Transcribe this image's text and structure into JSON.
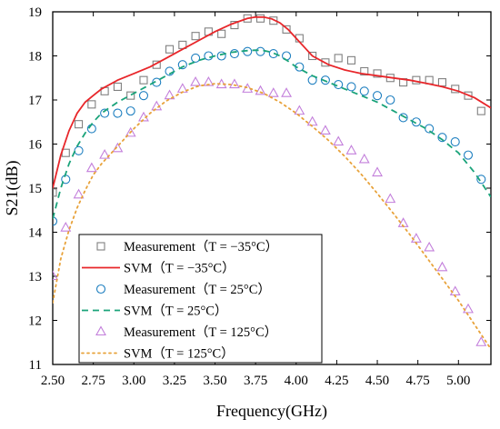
{
  "chart_data": {
    "type": "line",
    "xlabel": "Frequency(GHz)",
    "ylabel": "S21(dB)",
    "xlim": [
      2.5,
      5.2
    ],
    "ylim": [
      11,
      19
    ],
    "xticks": [
      "2.50",
      "2.75",
      "3.00",
      "3.25",
      "3.50",
      "3.75",
      "4.00",
      "4.25",
      "4.50",
      "4.75",
      "5.00"
    ],
    "yticks": [
      "11",
      "12",
      "13",
      "14",
      "15",
      "16",
      "17",
      "18",
      "19"
    ],
    "grid": false,
    "legend_position": "bottom-left",
    "series": [
      {
        "name": "Measurement（T = −35°C）",
        "kind": "scatter",
        "marker": "square",
        "color": "#808080",
        "x": [
          2.5,
          2.58,
          2.66,
          2.74,
          2.82,
          2.9,
          2.98,
          3.06,
          3.14,
          3.22,
          3.3,
          3.38,
          3.46,
          3.54,
          3.62,
          3.7,
          3.78,
          3.86,
          3.94,
          4.02,
          4.1,
          4.18,
          4.26,
          4.34,
          4.42,
          4.5,
          4.58,
          4.66,
          4.74,
          4.82,
          4.9,
          4.98,
          5.06,
          5.14
        ],
        "y": [
          14.9,
          15.8,
          16.45,
          16.9,
          17.2,
          17.3,
          17.1,
          17.45,
          17.8,
          18.15,
          18.25,
          18.45,
          18.55,
          18.5,
          18.7,
          18.85,
          18.85,
          18.8,
          18.6,
          18.4,
          18.0,
          17.85,
          17.95,
          17.9,
          17.65,
          17.6,
          17.5,
          17.4,
          17.45,
          17.45,
          17.4,
          17.25,
          17.1,
          16.75
        ]
      },
      {
        "name": "SVM（T = −35°C）",
        "kind": "line",
        "style": "solid",
        "color": "#e8262a",
        "x": [
          2.5,
          2.55,
          2.6,
          2.65,
          2.7,
          2.75,
          2.8,
          2.9,
          3.0,
          3.1,
          3.2,
          3.3,
          3.4,
          3.5,
          3.6,
          3.7,
          3.75,
          3.8,
          3.85,
          3.9,
          3.95,
          4.0,
          4.05,
          4.1,
          4.2,
          4.3,
          4.4,
          4.5,
          4.6,
          4.7,
          4.8,
          4.9,
          5.0,
          5.1,
          5.2
        ],
        "y": [
          15.0,
          15.75,
          16.3,
          16.7,
          16.95,
          17.1,
          17.25,
          17.45,
          17.6,
          17.75,
          17.95,
          18.15,
          18.35,
          18.55,
          18.72,
          18.85,
          18.88,
          18.88,
          18.84,
          18.75,
          18.6,
          18.4,
          18.2,
          18.0,
          17.8,
          17.68,
          17.6,
          17.55,
          17.5,
          17.45,
          17.38,
          17.3,
          17.2,
          17.05,
          16.82
        ]
      },
      {
        "name": "Measurement（T = 25°C）",
        "kind": "scatter",
        "marker": "circle",
        "color": "#1e7fc0",
        "x": [
          2.5,
          2.58,
          2.66,
          2.74,
          2.82,
          2.9,
          2.98,
          3.06,
          3.14,
          3.22,
          3.3,
          3.38,
          3.46,
          3.54,
          3.62,
          3.7,
          3.78,
          3.86,
          3.94,
          4.02,
          4.1,
          4.18,
          4.26,
          4.34,
          4.42,
          4.5,
          4.58,
          4.66,
          4.74,
          4.82,
          4.9,
          4.98,
          5.06,
          5.14
        ],
        "y": [
          14.25,
          15.2,
          15.85,
          16.35,
          16.7,
          16.7,
          16.75,
          17.1,
          17.4,
          17.65,
          17.8,
          17.95,
          18.0,
          18.0,
          18.05,
          18.1,
          18.1,
          18.05,
          18.0,
          17.75,
          17.45,
          17.45,
          17.35,
          17.3,
          17.2,
          17.1,
          17.0,
          16.6,
          16.5,
          16.35,
          16.15,
          16.05,
          15.75,
          15.2
        ]
      },
      {
        "name": "SVM（T = 25°C）",
        "kind": "line",
        "style": "dashed",
        "color": "#1aa37a",
        "x": [
          2.5,
          2.55,
          2.6,
          2.65,
          2.7,
          2.75,
          2.8,
          2.9,
          3.0,
          3.1,
          3.2,
          3.3,
          3.4,
          3.5,
          3.6,
          3.7,
          3.75,
          3.8,
          3.85,
          3.9,
          3.95,
          4.0,
          4.1,
          4.2,
          4.3,
          4.4,
          4.5,
          4.6,
          4.7,
          4.8,
          4.9,
          5.0,
          5.1,
          5.2
        ],
        "y": [
          14.3,
          15.0,
          15.55,
          15.95,
          16.25,
          16.5,
          16.7,
          16.95,
          17.15,
          17.35,
          17.55,
          17.75,
          17.9,
          18.0,
          18.08,
          18.12,
          18.13,
          18.12,
          18.08,
          18.0,
          17.88,
          17.75,
          17.55,
          17.4,
          17.25,
          17.1,
          16.95,
          16.75,
          16.55,
          16.35,
          16.1,
          15.8,
          15.35,
          14.8
        ]
      },
      {
        "name": "Measurement（T = 125°C）",
        "kind": "scatter",
        "marker": "triangle",
        "color": "#c37fdb",
        "x": [
          2.5,
          2.58,
          2.66,
          2.74,
          2.82,
          2.9,
          2.98,
          3.06,
          3.14,
          3.22,
          3.3,
          3.38,
          3.46,
          3.54,
          3.62,
          3.7,
          3.78,
          3.86,
          3.94,
          4.02,
          4.1,
          4.18,
          4.26,
          4.34,
          4.42,
          4.5,
          4.58,
          4.66,
          4.74,
          4.82,
          4.9,
          4.98,
          5.06,
          5.14
        ],
        "y": [
          13.0,
          14.1,
          14.85,
          15.45,
          15.75,
          15.9,
          16.25,
          16.6,
          16.85,
          17.1,
          17.25,
          17.4,
          17.4,
          17.35,
          17.35,
          17.25,
          17.2,
          17.15,
          17.15,
          16.75,
          16.5,
          16.3,
          16.05,
          15.85,
          15.65,
          15.35,
          14.75,
          14.2,
          13.85,
          13.65,
          13.2,
          12.65,
          12.25,
          11.5
        ]
      },
      {
        "name": "SVM（T = 125°C）",
        "kind": "line",
        "style": "dotted",
        "color": "#e8a23a",
        "x": [
          2.5,
          2.55,
          2.6,
          2.65,
          2.7,
          2.75,
          2.8,
          2.9,
          3.0,
          3.1,
          3.2,
          3.3,
          3.4,
          3.5,
          3.6,
          3.7,
          3.8,
          3.9,
          4.0,
          4.1,
          4.2,
          4.3,
          4.4,
          4.5,
          4.6,
          4.7,
          4.8,
          4.9,
          5.0,
          5.1,
          5.2
        ],
        "y": [
          12.4,
          13.4,
          14.05,
          14.55,
          14.95,
          15.3,
          15.55,
          15.95,
          16.35,
          16.7,
          16.98,
          17.18,
          17.32,
          17.37,
          17.35,
          17.28,
          17.15,
          16.95,
          16.7,
          16.4,
          16.08,
          15.72,
          15.32,
          14.88,
          14.42,
          13.95,
          13.45,
          12.95,
          12.45,
          11.9,
          11.35
        ]
      }
    ]
  }
}
